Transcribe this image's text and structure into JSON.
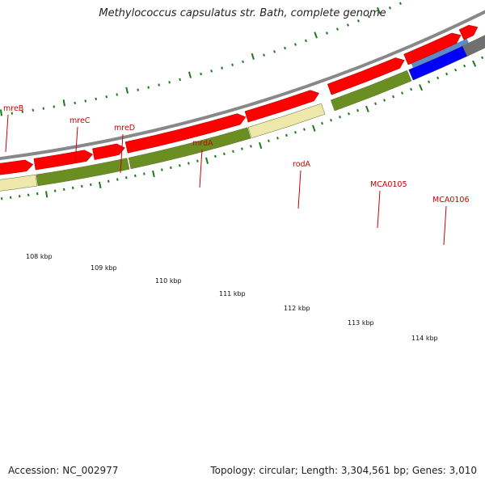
{
  "title": "Methylococcus capsulatus str. Bath, complete genome",
  "footer": {
    "accession": "Accession: NC_002977",
    "summary": "Topology: circular; Length: 3,304,561 bp; Genes: 3,010"
  },
  "colors": {
    "gene_label": "#cc0000",
    "cds_arrow": "#ff0000",
    "olive_feature": "#6b8e23",
    "cream_feature": "#eee8aa",
    "blue_feature": "#0000ff",
    "steelblue_feature": "#5a8cc8",
    "gray_feature": "#707070",
    "backbone": "#888888",
    "tick_green": "#1a7a1a"
  },
  "gene_labels": [
    "mreB",
    "mreC",
    "mreD",
    "mrdA",
    "rodA",
    "MCA0105",
    "MCA0106"
  ],
  "kbp_labels": [
    "108 kbp",
    "109 kbp",
    "110 kbp",
    "111 kbp",
    "112 kbp",
    "113 kbp",
    "114 kbp"
  ]
}
